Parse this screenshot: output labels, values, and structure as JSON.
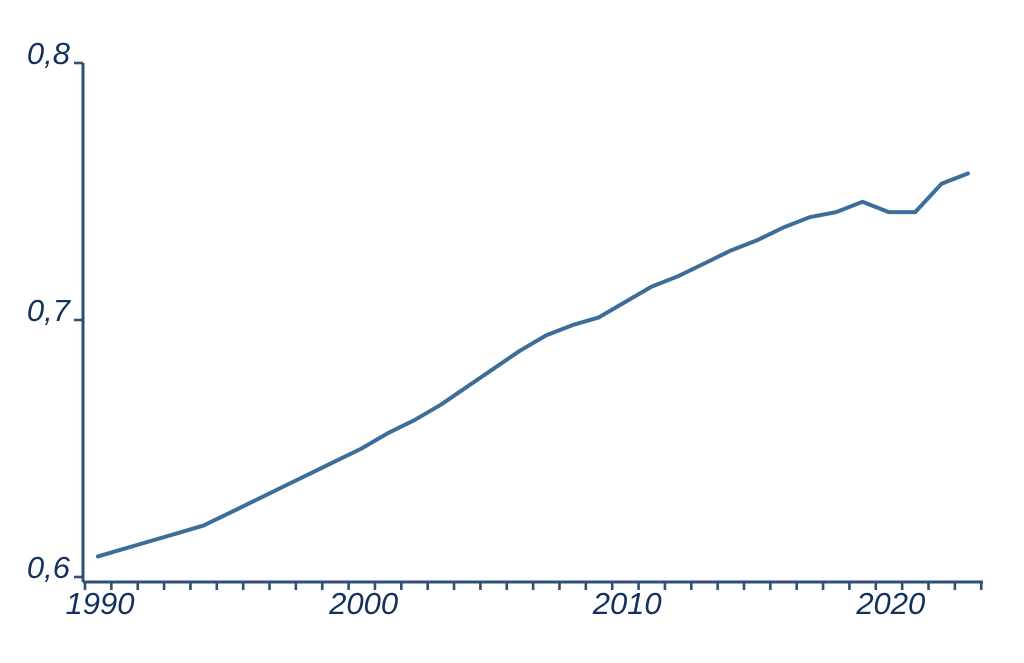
{
  "chart_data": {
    "type": "line",
    "title": "",
    "xlabel": "",
    "ylabel": "",
    "grid": false,
    "legend": false,
    "decimal_separator": ",",
    "x": [
      1990,
      1991,
      1992,
      1993,
      1994,
      1995,
      1996,
      1997,
      1998,
      1999,
      2000,
      2001,
      2002,
      2003,
      2004,
      2005,
      2006,
      2007,
      2008,
      2009,
      2010,
      2011,
      2012,
      2013,
      2014,
      2015,
      2016,
      2017,
      2018,
      2019,
      2020,
      2021,
      2022,
      2023
    ],
    "values": [
      0.608,
      0.611,
      0.614,
      0.617,
      0.62,
      0.625,
      0.63,
      0.635,
      0.64,
      0.645,
      0.65,
      0.656,
      0.661,
      0.667,
      0.674,
      0.681,
      0.688,
      0.694,
      0.698,
      0.701,
      0.707,
      0.713,
      0.717,
      0.722,
      0.727,
      0.731,
      0.736,
      0.74,
      0.742,
      0.746,
      0.742,
      0.742,
      0.753,
      0.757
    ],
    "ylim": [
      0.6,
      0.8
    ],
    "xlim": [
      1990,
      2024
    ],
    "y_ticks": [
      {
        "value": 0.6,
        "label": "0,6"
      },
      {
        "value": 0.7,
        "label": "0,7"
      },
      {
        "value": 0.8,
        "label": "0,8"
      }
    ],
    "x_tick_step_years": 1,
    "x_labeled_ticks": [
      {
        "value": 1990,
        "label": "1990"
      },
      {
        "value": 2000,
        "label": "2000"
      },
      {
        "value": 2010,
        "label": "2010"
      },
      {
        "value": 2020,
        "label": "2020"
      }
    ],
    "colors": {
      "line": "#3c6e99",
      "axis": "#2f4f74",
      "labels": "#14315b",
      "background": "#ffffff"
    }
  }
}
